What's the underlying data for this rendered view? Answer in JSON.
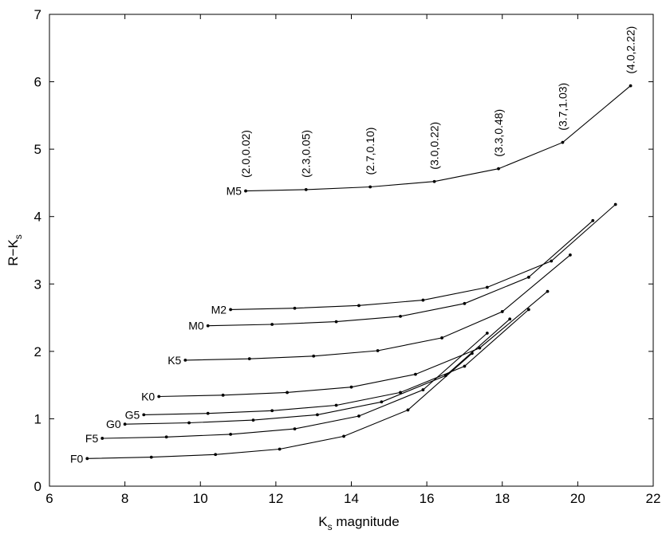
{
  "chart_data": {
    "type": "line",
    "xlabel": "K",
    "xlabel_sub": "s",
    "xlabel_rest": " magnitude",
    "ylabel": "R−K",
    "ylabel_sub": "s",
    "xlim": [
      6,
      22
    ],
    "ylim": [
      0,
      7
    ],
    "xticks": [
      6,
      8,
      10,
      12,
      14,
      16,
      18,
      20,
      22
    ],
    "yticks": [
      0,
      1,
      2,
      3,
      4,
      5,
      6,
      7
    ],
    "grid": false,
    "series": [
      {
        "name": "M5",
        "x": [
          11.2,
          12.8,
          14.5,
          16.2,
          17.9,
          19.6,
          21.4
        ],
        "y": [
          4.38,
          4.4,
          4.44,
          4.52,
          4.71,
          5.1,
          5.94
        ]
      },
      {
        "name": "M2",
        "x": [
          10.8,
          12.5,
          14.2,
          15.9,
          17.6,
          19.3,
          21.0
        ],
        "y": [
          2.62,
          2.64,
          2.68,
          2.76,
          2.95,
          3.34,
          4.18
        ]
      },
      {
        "name": "M0",
        "x": [
          10.2,
          11.9,
          13.6,
          15.3,
          17.0,
          18.7,
          20.4
        ],
        "y": [
          2.38,
          2.4,
          2.44,
          2.52,
          2.71,
          3.1,
          3.94
        ]
      },
      {
        "name": "K5",
        "x": [
          9.6,
          11.3,
          13.0,
          14.7,
          16.4,
          18.0,
          19.8
        ],
        "y": [
          1.87,
          1.89,
          1.93,
          2.01,
          2.2,
          2.59,
          3.43
        ]
      },
      {
        "name": "K0",
        "x": [
          8.9,
          10.6,
          12.3,
          14.0,
          15.7,
          17.4,
          19.2
        ],
        "y": [
          1.33,
          1.35,
          1.39,
          1.47,
          1.66,
          2.05,
          2.89
        ]
      },
      {
        "name": "G5",
        "x": [
          8.5,
          10.2,
          11.9,
          13.6,
          15.3,
          17.0,
          18.7
        ],
        "y": [
          1.06,
          1.08,
          1.12,
          1.2,
          1.39,
          1.78,
          2.62
        ]
      },
      {
        "name": "G0",
        "x": [
          8.0,
          9.7,
          11.4,
          13.1,
          14.8,
          16.5,
          18.2
        ],
        "y": [
          0.92,
          0.94,
          0.98,
          1.06,
          1.25,
          1.64,
          2.48
        ]
      },
      {
        "name": "F5",
        "x": [
          7.4,
          9.1,
          10.8,
          12.5,
          14.2,
          15.9,
          17.6
        ],
        "y": [
          0.71,
          0.73,
          0.77,
          0.85,
          1.04,
          1.43,
          2.27
        ]
      },
      {
        "name": "F0",
        "x": [
          7.0,
          8.7,
          10.4,
          12.1,
          13.8,
          15.5,
          17.2
        ],
        "y": [
          0.41,
          0.43,
          0.47,
          0.55,
          0.74,
          1.13,
          1.97
        ]
      }
    ],
    "annotations": [
      {
        "text": "(2.0,0.02)",
        "x": 11.2
      },
      {
        "text": "(2.3,0.05)",
        "x": 12.8
      },
      {
        "text": "(2.7,0.10)",
        "x": 14.5
      },
      {
        "text": "(3.0,0.22)",
        "x": 16.2
      },
      {
        "text": "(3.3,0.48)",
        "x": 17.9
      },
      {
        "text": "(3.7,1.03)",
        "x": 19.6
      },
      {
        "text": "(4.0,2.22)",
        "x": 21.4
      }
    ]
  }
}
